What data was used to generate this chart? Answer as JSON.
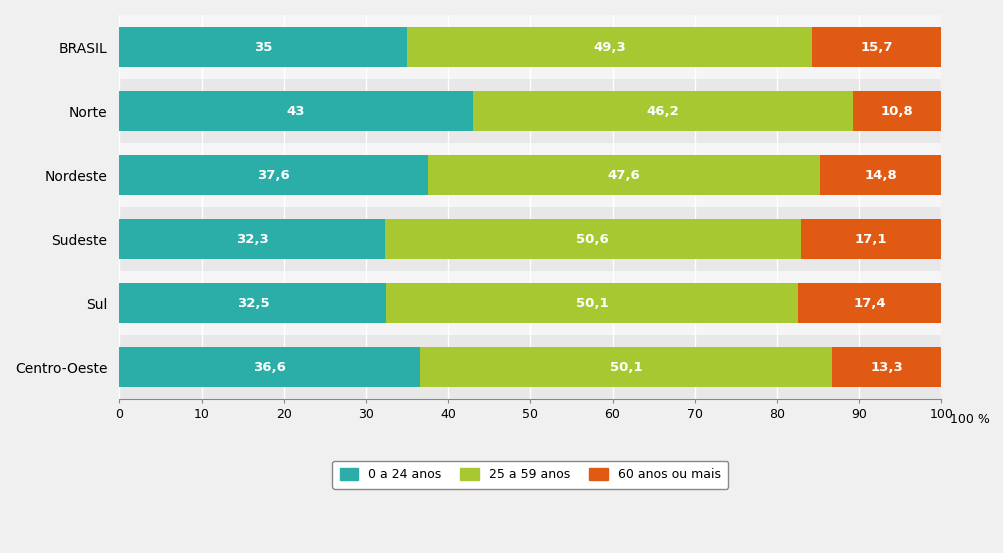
{
  "categories": [
    "Centro-Oeste",
    "Sul",
    "Sudeste",
    "Nordeste",
    "Norte",
    "BRASIL"
  ],
  "series": [
    {
      "label": "0 a 24 anos",
      "values": [
        36.6,
        32.5,
        32.3,
        37.6,
        43.0,
        35.0
      ],
      "color": "#2BADA8"
    },
    {
      "label": "25 a 59 anos",
      "values": [
        50.1,
        50.1,
        50.6,
        47.6,
        46.2,
        49.3
      ],
      "color": "#A8C832"
    },
    {
      "label": "60 anos ou mais",
      "values": [
        13.3,
        17.4,
        17.1,
        14.8,
        10.8,
        15.7
      ],
      "color": "#E05A14"
    }
  ],
  "xlim": [
    0,
    100
  ],
  "xticks": [
    0,
    10,
    20,
    30,
    40,
    50,
    60,
    70,
    80,
    90,
    100
  ],
  "bar_height": 0.62,
  "outer_bg_color": "#f0f0f0",
  "plot_bg_color": "#ffffff",
  "band_color_even": "#e8e8e8",
  "band_color_odd": "#f5f5f5",
  "text_color": "#000000",
  "label_fontsize": 10,
  "tick_fontsize": 9,
  "legend_fontsize": 9,
  "value_fontsize": 9.5
}
